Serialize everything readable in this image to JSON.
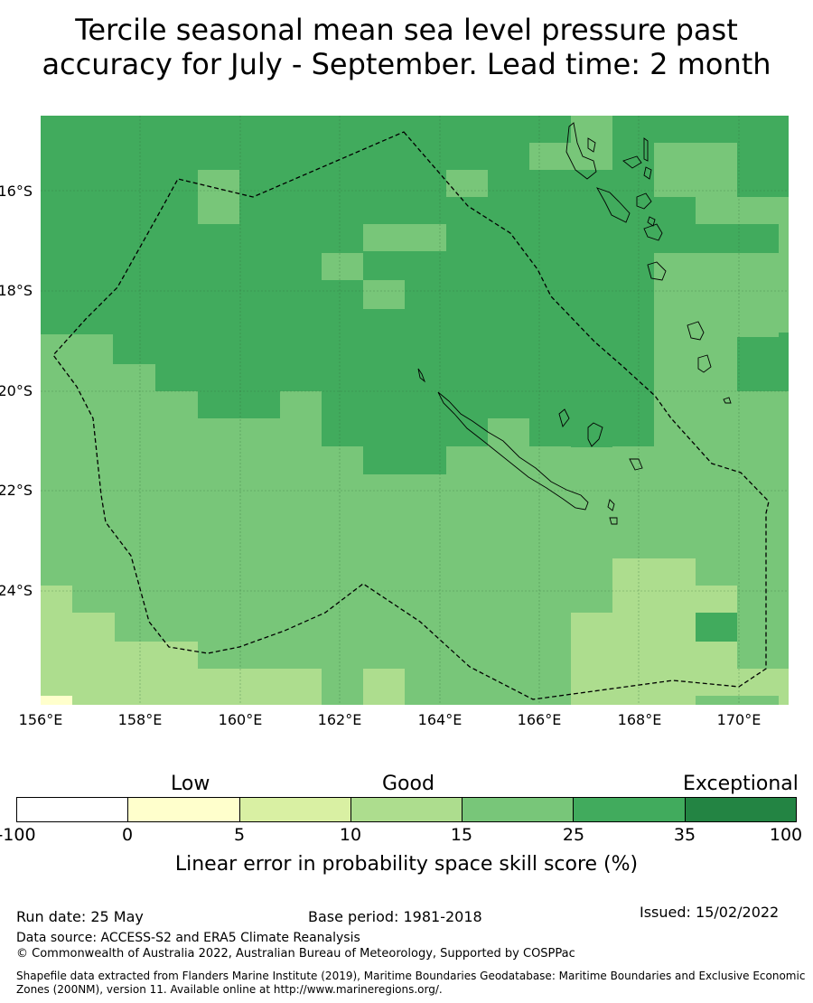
{
  "title_line1": "Tercile seasonal mean sea level pressure past",
  "title_line2": "accuracy for July - September. Lead time: 2 month",
  "map": {
    "lon_range": [
      156,
      171
    ],
    "lat_range": [
      -26.2,
      -14.4
    ],
    "lat_labels": [
      "16°S",
      "18°S",
      "20°S",
      "22°S",
      "24°S"
    ],
    "lon_labels": [
      "156°E",
      "158°E",
      "160°E",
      "162°E",
      "164°E",
      "166°E",
      "168°E",
      "170°E"
    ],
    "colors": {
      "c_15_25": "#78c679",
      "c_25_35": "#41ab5d",
      "c_10_15": "#addd8e",
      "c_0_5": "#ffffcc",
      "boundary": "#000000"
    }
  },
  "colorbar": {
    "categories": [
      {
        "label": "Low"
      },
      {
        "label": "Good"
      },
      {
        "label": "Exceptional"
      }
    ],
    "ticks": [
      "-100",
      "0",
      "5",
      "10",
      "15",
      "25",
      "35",
      "100"
    ],
    "colors": [
      "#ffffff",
      "#ffffcc",
      "#d9f0a3",
      "#addd8e",
      "#78c679",
      "#41ab5d",
      "#238443"
    ],
    "label": "Linear error in probability space skill score (%)"
  },
  "footer": {
    "run_date": "Run date: 25 May",
    "base_period": "Base period: 1981-2018",
    "issued": "Issued: 15/02/2022",
    "data_source": "Data source: ACCESS-S2 and ERA5 Climate Reanalysis",
    "copyright": "© Commonwealth of Australia 2022, Australian Bureau of Meteorology, Supported by COSPPac",
    "shapefile_line1": "Shapefile data extracted from Flanders Marine Institute (2019), Maritime Boundaries Geodatabase: Maritime Boundaries and Exclusive Economic",
    "shapefile_line2": "Zones (200NM), version 11. Available online at http://www.marineregions.org/."
  }
}
